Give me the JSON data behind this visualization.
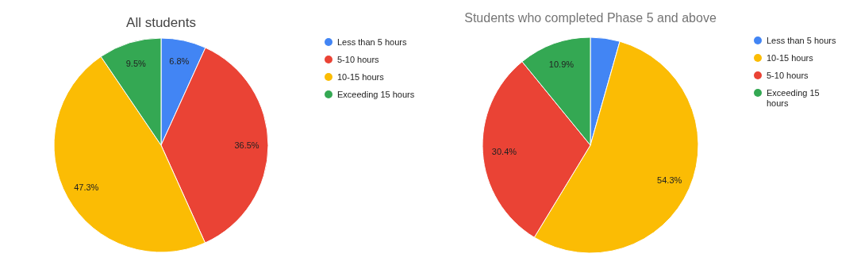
{
  "chart_data": [
    {
      "type": "pie",
      "title": "All students",
      "categories": [
        "Less than 5 hours",
        "5-10 hours",
        "10-15 hours",
        "Exceeding 15 hours"
      ],
      "values": [
        6.8,
        36.5,
        47.3,
        9.5
      ],
      "colors": [
        "#4285f4",
        "#ea4335",
        "#fbbc04",
        "#34a853"
      ],
      "value_labels": [
        "6.8%",
        "36.5%",
        "47.3%",
        "9.5%"
      ],
      "legend": "right"
    },
    {
      "type": "pie",
      "title": "Students who completed Phase 5 and above",
      "categories": [
        "Less than 5 hours",
        "10-15 hours",
        "5-10 hours",
        "Exceeding 15 hours"
      ],
      "values": [
        4.4,
        54.3,
        30.4,
        10.9
      ],
      "colors": [
        "#4285f4",
        "#fbbc04",
        "#ea4335",
        "#34a853"
      ],
      "value_labels": [
        null,
        "54.3%",
        "30.4%",
        "10.9%"
      ],
      "legend": "right"
    }
  ]
}
